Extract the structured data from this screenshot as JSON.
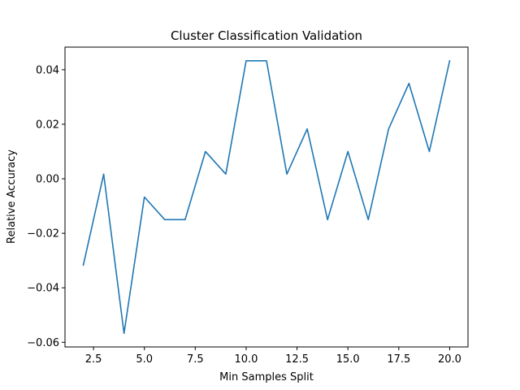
{
  "chart_data": {
    "type": "line",
    "title": "Cluster Classification Validation",
    "xlabel": "Min Samples Split",
    "ylabel": "Relative Accuracy",
    "xlim": [
      1.1,
      20.9
    ],
    "ylim": [
      -0.0617,
      0.0483
    ],
    "x_ticks": [
      2.5,
      5.0,
      7.5,
      10.0,
      12.5,
      15.0,
      17.5,
      20.0
    ],
    "x_tick_labels": [
      "2.5",
      "5.0",
      "7.5",
      "10.0",
      "12.5",
      "15.0",
      "17.5",
      "20.0"
    ],
    "y_ticks": [
      -0.06,
      -0.04,
      -0.02,
      0.0,
      0.02,
      0.04
    ],
    "y_tick_labels": [
      "−0.06",
      "−0.04",
      "−0.02",
      "0.00",
      "0.02",
      "0.04"
    ],
    "grid": false,
    "line_color": "#1f77b4",
    "series": [
      {
        "x": [
          2,
          3,
          4,
          5,
          6,
          7,
          8,
          9,
          10,
          11,
          12,
          13,
          14,
          15,
          16,
          17,
          18,
          19,
          20
        ],
        "values": [
          -0.0317,
          0.0017,
          -0.0567,
          -0.0067,
          -0.015,
          -0.015,
          0.01,
          0.0017,
          0.0433,
          0.0433,
          0.0017,
          0.0183,
          -0.015,
          0.01,
          -0.015,
          0.0183,
          0.035,
          0.01,
          0.0433
        ]
      }
    ]
  }
}
